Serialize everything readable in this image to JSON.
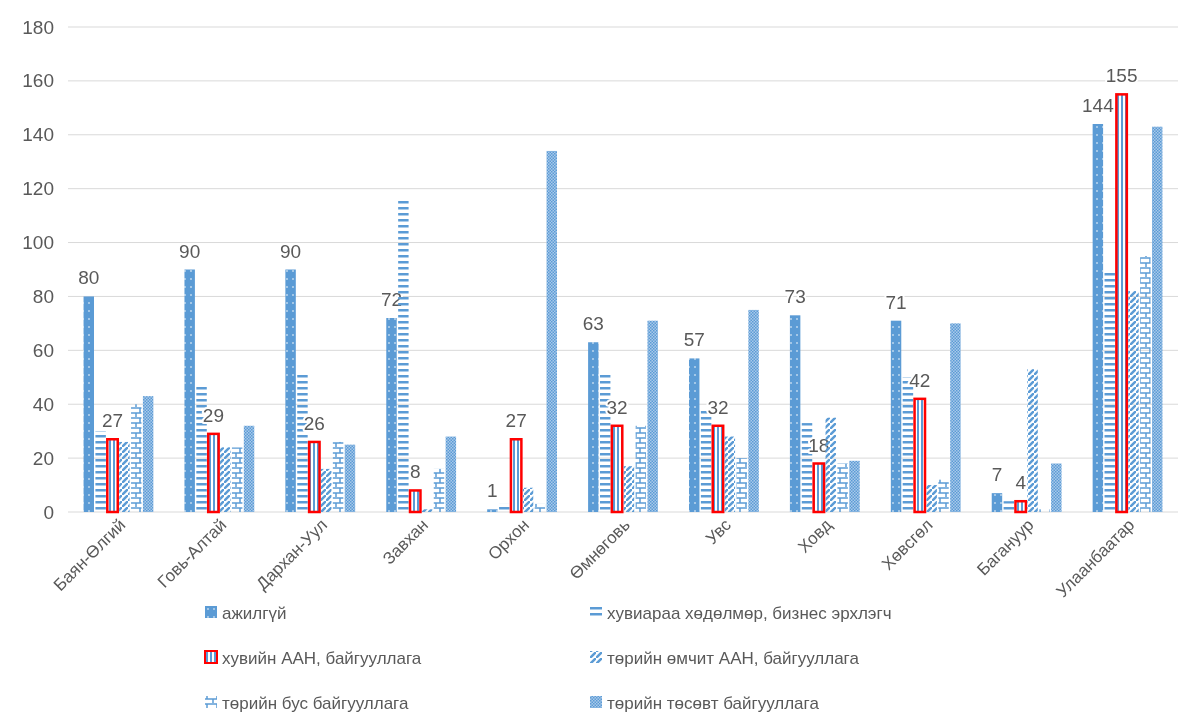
{
  "chart_data": {
    "type": "bar",
    "categories": [
      "Баян-Өлгий",
      "Говь-Алтай",
      "Дархан-Уул",
      "Завхан",
      "Орхон",
      "Өмнөговь",
      "Увс",
      "Ховд",
      "Хөвсгөл",
      "Багануур",
      "Улаанбаатар"
    ],
    "series": [
      {
        "name": "ажилгүй",
        "color": "#5b9bd5",
        "values": [
          80,
          90,
          90,
          72,
          1,
          63,
          57,
          73,
          71,
          7,
          144
        ],
        "value_labels": [
          "80",
          "90",
          "90",
          "72",
          "1",
          "63",
          "57",
          "73",
          "71",
          "7",
          "144"
        ]
      },
      {
        "name": "хувиараа хөдөлмөр, бизнес эрхлэгч",
        "color": "#5b9bd5",
        "values": [
          30,
          47,
          51,
          116,
          3,
          51,
          38,
          33,
          50,
          4,
          89
        ]
      },
      {
        "name": "хувийн ААН, байгууллага",
        "color": "#ff0000",
        "values": [
          27,
          29,
          26,
          8,
          27,
          32,
          32,
          18,
          42,
          4,
          155
        ],
        "value_labels": [
          "27",
          "29",
          "26",
          "8",
          "27",
          "32",
          "32",
          "18",
          "42",
          "4",
          "155"
        ]
      },
      {
        "name": "төрийн өмчит ААН, байгууллага",
        "color": "#5b9bd5",
        "values": [
          26,
          24,
          16,
          1,
          9,
          17,
          28,
          35,
          10,
          53,
          82
        ]
      },
      {
        "name": "төрийн бус байгууллага",
        "color": "#5b9bd5",
        "values": [
          40,
          24,
          26,
          16,
          3,
          32,
          20,
          18,
          12,
          1,
          95
        ]
      },
      {
        "name": "төрийн төсөвт байгууллага",
        "color": "#5b9bd5",
        "values": [
          43,
          32,
          25,
          28,
          134,
          71,
          75,
          19,
          70,
          18,
          143
        ]
      }
    ],
    "ylim": [
      0,
      180
    ],
    "yticks": [
      0,
      20,
      40,
      60,
      80,
      100,
      120,
      140,
      160,
      180
    ],
    "grid": "y",
    "legend": "bottom"
  }
}
